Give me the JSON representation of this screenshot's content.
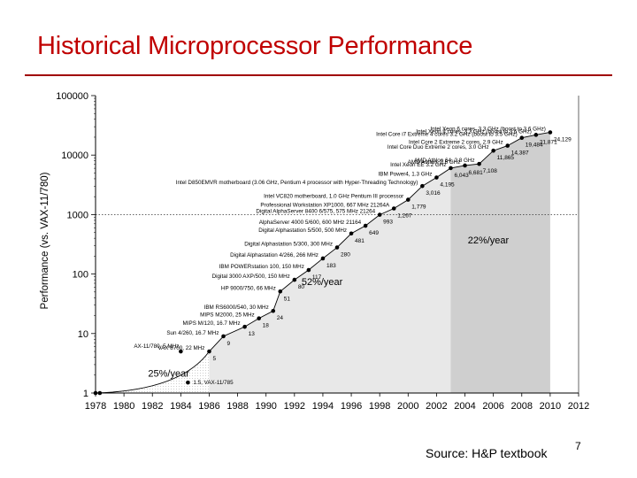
{
  "slide": {
    "title": "Historical Microprocessor Performance",
    "source": "Source: H&P textbook",
    "page_number": "7"
  },
  "chart_data": {
    "type": "scatter",
    "title": "",
    "xlabel": "",
    "ylabel": "Performance (vs. VAX-11/780)",
    "xlim": [
      1978,
      2012
    ],
    "ylim": [
      1,
      100000
    ],
    "yscale": "log",
    "grid": false,
    "x_ticks": [
      "1978",
      "1980",
      "1982",
      "1984",
      "1986",
      "1988",
      "1990",
      "1992",
      "1994",
      "1996",
      "1998",
      "2000",
      "2002",
      "2004",
      "2006",
      "2008",
      "2010",
      "2012"
    ],
    "y_ticks": [
      {
        "value": 1,
        "label": "1"
      },
      {
        "value": 10,
        "label": "10"
      },
      {
        "value": 100,
        "label": "100"
      },
      {
        "value": 1000,
        "label": "1000"
      },
      {
        "value": 10000,
        "label": "10000"
      },
      {
        "value": 100000,
        "label": "100000"
      }
    ],
    "regions": [
      {
        "x0": 1978,
        "x1": 1986,
        "label": "25%/year"
      },
      {
        "x0": 1986,
        "x1": 2003,
        "label": "52%/year"
      },
      {
        "x0": 2003,
        "x1": 2010,
        "label": "22%/year"
      }
    ],
    "points": [
      {
        "x": 1978,
        "y": 1,
        "label": "",
        "value_label": ""
      },
      {
        "x": 1978.3,
        "y": 1,
        "label": "",
        "value_label": ""
      },
      {
        "x": 1984.5,
        "y": 1.5,
        "label": "1.5, VAX-11/785",
        "value_label": ""
      },
      {
        "x": 1984,
        "y": 5,
        "label": "AX-11/780, 5 MHz",
        "value_label": ""
      },
      {
        "x": 1986,
        "y": 5,
        "label": "VAX 8700, 22 MHz",
        "value_label": "5"
      },
      {
        "x": 1987,
        "y": 9,
        "label": "Sun 4/260, 16.7 MHz",
        "value_label": "9"
      },
      {
        "x": 1988.5,
        "y": 13,
        "label": "MIPS M/120, 16.7 MHz",
        "value_label": "13"
      },
      {
        "x": 1989.5,
        "y": 18,
        "label": "MIPS M2000, 25 MHz",
        "value_label": "18"
      },
      {
        "x": 1990.5,
        "y": 24,
        "label": "IBM RS6000/540, 30 MHz",
        "value_label": "24"
      },
      {
        "x": 1991,
        "y": 51,
        "label": "HP 9000/750, 66 MHz",
        "value_label": "51"
      },
      {
        "x": 1992,
        "y": 80,
        "label": "Digital 3000 AXP/500, 150 MHz",
        "value_label": "80"
      },
      {
        "x": 1993,
        "y": 117,
        "label": "IBM POWERstation 100, 150 MHz",
        "value_label": "117"
      },
      {
        "x": 1994,
        "y": 183,
        "label": "Digital Alphastation 4/266, 266 MHz",
        "value_label": "183"
      },
      {
        "x": 1995,
        "y": 280,
        "label": "Digital Alphastation 5/300, 300 MHz",
        "value_label": "280"
      },
      {
        "x": 1996,
        "y": 481,
        "label": "Digital Alphastation 5/500, 500 MHz",
        "value_label": "481"
      },
      {
        "x": 1997,
        "y": 649,
        "label": "AlphaServer 4000 5/600, 600 MHz 21164",
        "value_label": "649"
      },
      {
        "x": 1998,
        "y": 993,
        "label": "Digital AlphaServer 8400 6/575, 575 MHz 21264",
        "value_label": "993"
      },
      {
        "x": 1999,
        "y": 1267,
        "label": "Professional Workstation XP1000, 667 MHz 21264A",
        "value_label": "1,267"
      },
      {
        "x": 2000,
        "y": 1779,
        "label": "Intel VC820 motherboard, 1.0 GHz Pentium III processor",
        "value_label": "1,779"
      },
      {
        "x": 2001,
        "y": 3016,
        "label": "Intel D850EMVR motherboard (3.06 GHz, Pentium 4 processor with Hyper-Threading Technology)",
        "value_label": "3,016"
      },
      {
        "x": 2002,
        "y": 4195,
        "label": "IBM Power4, 1.3 GHz",
        "value_label": "4,195"
      },
      {
        "x": 2003,
        "y": 6043,
        "label": "Intel Xeon EE 3.2 GHz",
        "value_label": "6,043"
      },
      {
        "x": 2004,
        "y": 6681,
        "label": "AMD Athlon, 2.6 GHz",
        "value_label": "6,681"
      },
      {
        "x": 2005,
        "y": 7108,
        "label": "AMD Athlon 64, 2.8 GHz",
        "value_label": "7,108"
      },
      {
        "x": 2006,
        "y": 11865,
        "label": "Intel Core Duo Extreme 2 cores, 3.0 GHz",
        "value_label": "11,865"
      },
      {
        "x": 2007,
        "y": 14387,
        "label": "Intel Core 2 Extreme 2 cores, 2.9 GHz",
        "value_label": "14,387"
      },
      {
        "x": 2008,
        "y": 19484,
        "label": "Intel Core i7 Extreme 4 cores 3.2 GHz (boost to 3.5 GHz)",
        "value_label": "19,484"
      },
      {
        "x": 2009,
        "y": 21871,
        "label": "Intel Xeon 4 cores, 3.3 GHz (boost to 3.6 GHz)",
        "value_label": "21,871"
      },
      {
        "x": 2010,
        "y": 24129,
        "label": "Intel Xeon 6 cores, 3.3 GHz (boost to 3.6 GHz)",
        "value_label": "24,129"
      }
    ]
  }
}
